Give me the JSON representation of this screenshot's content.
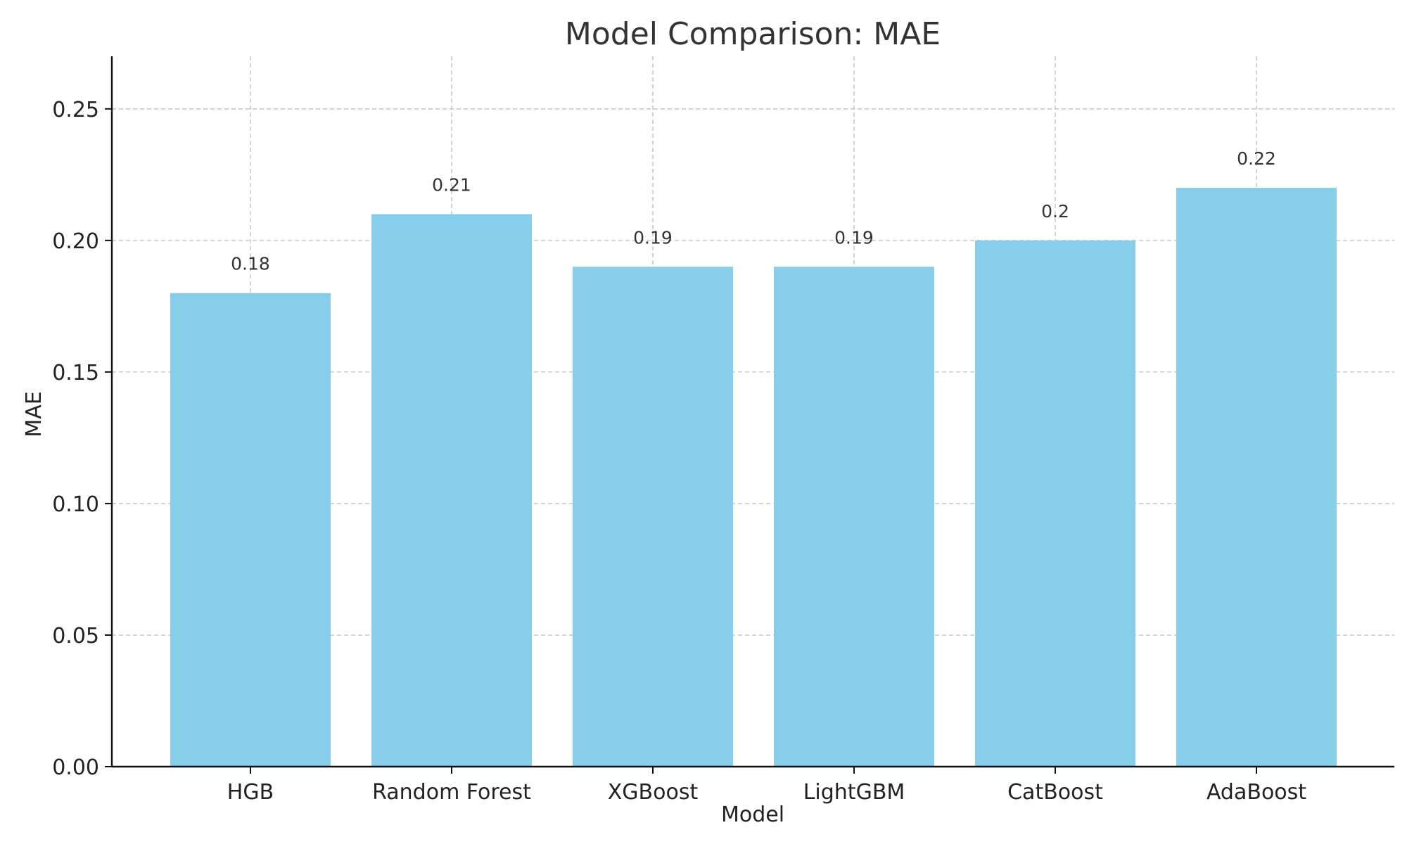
{
  "chart_data": {
    "type": "bar",
    "title": "Model Comparison: MAE",
    "xlabel": "Model",
    "ylabel": "MAE",
    "categories": [
      "HGB",
      "Random Forest",
      "XGBoost",
      "LightGBM",
      "CatBoost",
      "AdaBoost"
    ],
    "values": [
      0.18,
      0.21,
      0.19,
      0.19,
      0.2,
      0.22
    ],
    "value_labels": [
      "0.18",
      "0.21",
      "0.19",
      "0.19",
      "0.2",
      "0.22"
    ],
    "yticks": [
      "0.00",
      "0.05",
      "0.10",
      "0.15",
      "0.20",
      "0.25"
    ],
    "ylim": [
      0,
      0.27
    ],
    "grid": true,
    "bar_color": "#87CEEB"
  }
}
